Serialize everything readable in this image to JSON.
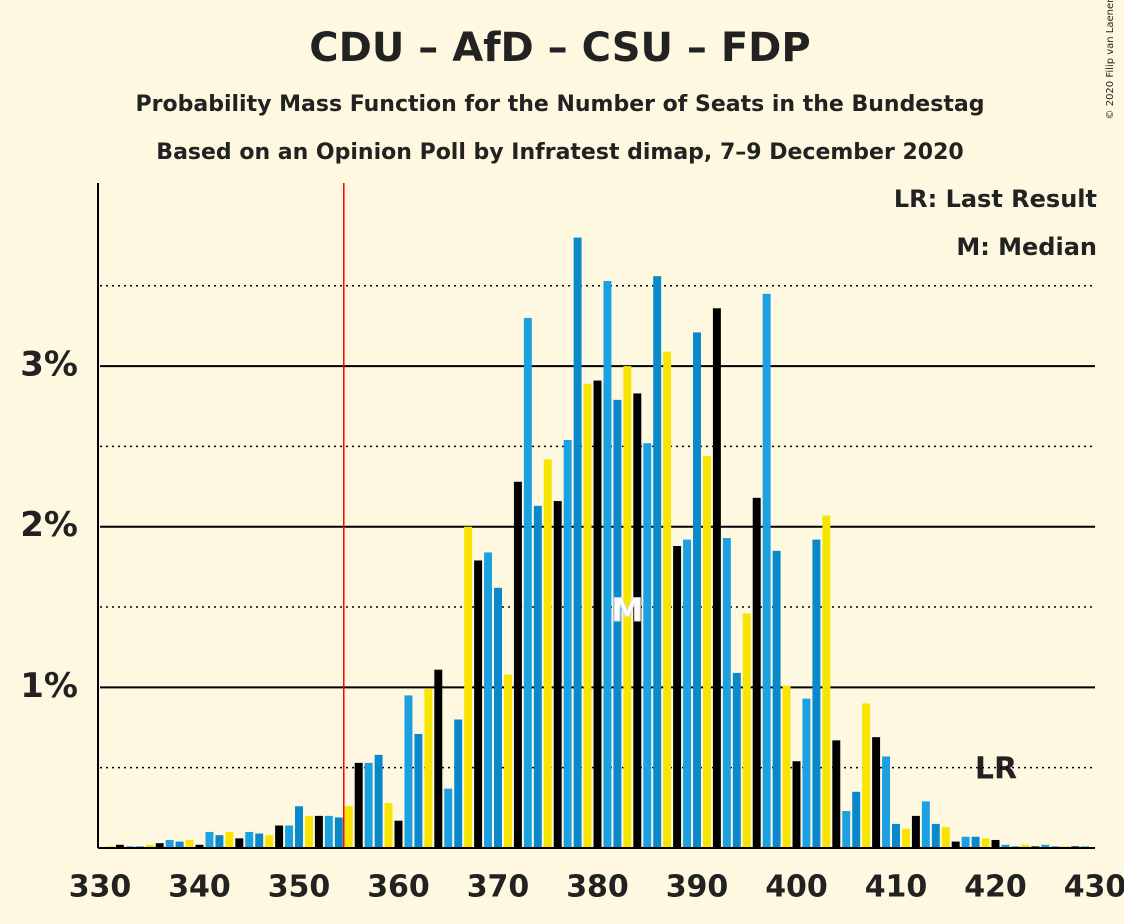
{
  "chart_data": {
    "type": "bar",
    "title": "CDU – AfD – CSU – FDP",
    "subtitle": "Probability Mass Function for the Number of Seats in the Bundestag",
    "subtitle2": "Based on an Opinion Poll by Infratest dimap, 7–9 December 2020",
    "copyright": "© 2020 Filip van Laenen",
    "legend": [
      "LR: Last Result",
      "M: Median"
    ],
    "lr_label": "LR",
    "median_label": "M",
    "last_result": 355,
    "median": 383,
    "x": [
      330,
      331,
      332,
      333,
      334,
      335,
      336,
      337,
      338,
      339,
      340,
      341,
      342,
      343,
      344,
      345,
      346,
      347,
      348,
      349,
      350,
      351,
      352,
      353,
      354,
      355,
      356,
      357,
      358,
      359,
      360,
      361,
      362,
      363,
      364,
      365,
      366,
      367,
      368,
      369,
      370,
      371,
      372,
      373,
      374,
      375,
      376,
      377,
      378,
      379,
      380,
      381,
      382,
      383,
      384,
      385,
      386,
      387,
      388,
      389,
      390,
      391,
      392,
      393,
      394,
      395,
      396,
      397,
      398,
      399,
      400,
      401,
      402,
      403,
      404,
      405,
      406,
      407,
      408,
      409,
      410,
      411,
      412,
      413,
      414,
      415,
      416,
      417,
      418,
      419,
      420,
      421,
      422,
      423,
      424,
      425,
      426,
      427,
      428,
      429,
      430
    ],
    "values": [
      0,
      0.01,
      0.02,
      0.01,
      0.01,
      0.02,
      0.03,
      0.05,
      0.04,
      0.05,
      0.02,
      0.1,
      0.08,
      0.1,
      0.06,
      0.1,
      0.09,
      0.08,
      0.14,
      0.14,
      0.26,
      0.2,
      0.2,
      0.2,
      0.19,
      0.26,
      0.53,
      0.53,
      0.58,
      0.28,
      0.17,
      0.95,
      0.71,
      0.99,
      1.11,
      0.37,
      0.8,
      2.0,
      1.79,
      1.84,
      1.62,
      1.08,
      2.28,
      3.3,
      2.13,
      2.42,
      2.16,
      2.54,
      3.8,
      2.89,
      2.91,
      3.53,
      2.79,
      3.0,
      2.83,
      2.52,
      3.56,
      3.09,
      1.88,
      1.92,
      3.21,
      2.44,
      3.36,
      1.93,
      1.09,
      1.46,
      2.18,
      3.45,
      1.85,
      1.01,
      0.54,
      0.93,
      1.92,
      2.07,
      0.67,
      0.23,
      0.35,
      0.9,
      0.69,
      0.57,
      0.15,
      0.12,
      0.2,
      0.29,
      0.15,
      0.13,
      0.04,
      0.07,
      0.07,
      0.06,
      0.05,
      0.02,
      0.01,
      0.02,
      0.01,
      0.02,
      0.01,
      0.01,
      0.01,
      0.01,
      0
    ],
    "color_cycle": [
      "#000000",
      "#1ba1e2",
      "#0a88cc",
      "#f7e400"
    ],
    "xlim": [
      330,
      430
    ],
    "xticks": [
      330,
      340,
      350,
      360,
      370,
      380,
      390,
      400,
      410,
      420,
      430
    ],
    "ylim": [
      0,
      4.14
    ],
    "yticks": [
      {
        "value": 1,
        "label": "1%"
      },
      {
        "value": 2,
        "label": "2%"
      },
      {
        "value": 3,
        "label": "3%"
      }
    ],
    "minor_yticks": [
      0.5,
      1.5,
      2.5,
      3.5
    ],
    "grid": true
  }
}
